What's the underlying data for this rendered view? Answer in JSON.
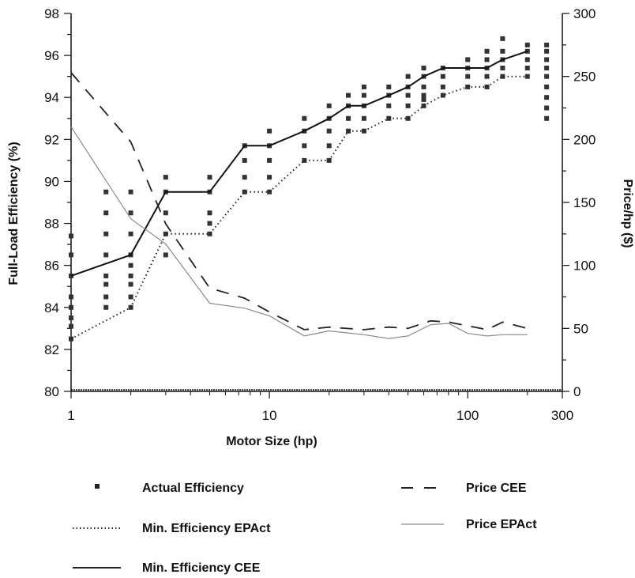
{
  "chart_data": {
    "type": "line",
    "xlabel": "Motor Size (hp)",
    "ylabel": "Full-Load Efficiency (%)",
    "y2label": "Price/hp ($)",
    "x_scale": "log",
    "xlim": [
      1,
      300
    ],
    "ylim": [
      80,
      98
    ],
    "y2lim": [
      0,
      300
    ],
    "x_ticks": [
      1,
      10,
      100,
      300
    ],
    "x_tick_labels": [
      "1",
      "10",
      "100",
      "300"
    ],
    "y_ticks": [
      80,
      82,
      84,
      86,
      88,
      90,
      92,
      94,
      96,
      98
    ],
    "y_tick_labels": [
      "80",
      "82",
      "84",
      "86",
      "88",
      "90",
      "92",
      "94",
      "96",
      "98"
    ],
    "y2_ticks": [
      0,
      50,
      100,
      150,
      200,
      250,
      300
    ],
    "y2_tick_labels": [
      "0",
      "50",
      "100",
      "150",
      "200",
      "250",
      "300"
    ],
    "grid": false,
    "legend_position": "bottom",
    "series": [
      {
        "name": "Actual Efficiency",
        "type": "scatter",
        "axis": "left",
        "points": [
          [
            1,
            82.5
          ],
          [
            1,
            83.1
          ],
          [
            1,
            83.5
          ],
          [
            1,
            84.0
          ],
          [
            1,
            84.5
          ],
          [
            1,
            85.5
          ],
          [
            1,
            86.5
          ],
          [
            1,
            87.4
          ],
          [
            1.5,
            84.0
          ],
          [
            1.5,
            84.5
          ],
          [
            1.5,
            85.1
          ],
          [
            1.5,
            85.5
          ],
          [
            1.5,
            86.5
          ],
          [
            1.5,
            87.5
          ],
          [
            1.5,
            88.5
          ],
          [
            1.5,
            89.5
          ],
          [
            2,
            84.0
          ],
          [
            2,
            84.5
          ],
          [
            2,
            85.1
          ],
          [
            2,
            85.5
          ],
          [
            2,
            86.0
          ],
          [
            2,
            86.5
          ],
          [
            2,
            87.5
          ],
          [
            2,
            88.5
          ],
          [
            2,
            89.5
          ],
          [
            3,
            86.5
          ],
          [
            3,
            87.5
          ],
          [
            3,
            88.5
          ],
          [
            3,
            89.5
          ],
          [
            3,
            90.2
          ],
          [
            5,
            87.5
          ],
          [
            5,
            88.0
          ],
          [
            5,
            88.5
          ],
          [
            5,
            89.5
          ],
          [
            5,
            90.2
          ],
          [
            7.5,
            89.5
          ],
          [
            7.5,
            90.2
          ],
          [
            7.5,
            91.0
          ],
          [
            7.5,
            91.7
          ],
          [
            10,
            89.5
          ],
          [
            10,
            90.2
          ],
          [
            10,
            91.0
          ],
          [
            10,
            91.7
          ],
          [
            10,
            92.4
          ],
          [
            15,
            91.0
          ],
          [
            15,
            91.7
          ],
          [
            15,
            92.4
          ],
          [
            15,
            93.0
          ],
          [
            20,
            91.0
          ],
          [
            20,
            91.7
          ],
          [
            20,
            92.4
          ],
          [
            20,
            93.0
          ],
          [
            20,
            93.6
          ],
          [
            25,
            92.4
          ],
          [
            25,
            93.0
          ],
          [
            25,
            93.6
          ],
          [
            25,
            94.1
          ],
          [
            30,
            92.4
          ],
          [
            30,
            93.0
          ],
          [
            30,
            93.6
          ],
          [
            30,
            94.1
          ],
          [
            30,
            94.5
          ],
          [
            40,
            93.0
          ],
          [
            40,
            93.6
          ],
          [
            40,
            94.1
          ],
          [
            40,
            94.5
          ],
          [
            50,
            93.0
          ],
          [
            50,
            93.6
          ],
          [
            50,
            94.1
          ],
          [
            50,
            94.5
          ],
          [
            50,
            95.0
          ],
          [
            60,
            93.6
          ],
          [
            60,
            93.9
          ],
          [
            60,
            94.1
          ],
          [
            60,
            94.5
          ],
          [
            60,
            95.0
          ],
          [
            60,
            95.4
          ],
          [
            75,
            94.1
          ],
          [
            75,
            94.5
          ],
          [
            75,
            95.0
          ],
          [
            75,
            95.4
          ],
          [
            100,
            94.5
          ],
          [
            100,
            95.0
          ],
          [
            100,
            95.4
          ],
          [
            100,
            95.8
          ],
          [
            125,
            94.5
          ],
          [
            125,
            95.0
          ],
          [
            125,
            95.4
          ],
          [
            125,
            95.8
          ],
          [
            125,
            96.2
          ],
          [
            150,
            95.0
          ],
          [
            150,
            95.4
          ],
          [
            150,
            95.8
          ],
          [
            150,
            96.2
          ],
          [
            150,
            96.8
          ],
          [
            200,
            95.0
          ],
          [
            200,
            95.4
          ],
          [
            200,
            95.8
          ],
          [
            200,
            96.2
          ],
          [
            200,
            96.5
          ],
          [
            250,
            93.0
          ],
          [
            250,
            93.5
          ],
          [
            250,
            94.0
          ],
          [
            250,
            94.5
          ],
          [
            250,
            95.0
          ],
          [
            250,
            95.4
          ],
          [
            250,
            95.8
          ],
          [
            250,
            96.2
          ],
          [
            250,
            96.5
          ]
        ]
      },
      {
        "name": "Min. Efficiency EPAct",
        "type": "line",
        "axis": "left",
        "style": "dotted",
        "points": [
          [
            1,
            82.5
          ],
          [
            2,
            84.0
          ],
          [
            3,
            87.5
          ],
          [
            5,
            87.5
          ],
          [
            7.5,
            89.5
          ],
          [
            10,
            89.5
          ],
          [
            15,
            91.0
          ],
          [
            20,
            91.0
          ],
          [
            25,
            92.4
          ],
          [
            30,
            92.4
          ],
          [
            40,
            93.0
          ],
          [
            50,
            93.0
          ],
          [
            60,
            93.6
          ],
          [
            75,
            94.1
          ],
          [
            100,
            94.5
          ],
          [
            125,
            94.5
          ],
          [
            150,
            95.0
          ],
          [
            200,
            95.0
          ]
        ]
      },
      {
        "name": "Min. Efficiency CEE",
        "type": "line",
        "axis": "left",
        "style": "solid",
        "points": [
          [
            1,
            85.5
          ],
          [
            2,
            86.5
          ],
          [
            3,
            89.5
          ],
          [
            5,
            89.5
          ],
          [
            7.5,
            91.7
          ],
          [
            10,
            91.7
          ],
          [
            15,
            92.4
          ],
          [
            20,
            93.0
          ],
          [
            25,
            93.6
          ],
          [
            30,
            93.6
          ],
          [
            40,
            94.1
          ],
          [
            50,
            94.5
          ],
          [
            60,
            95.0
          ],
          [
            75,
            95.4
          ],
          [
            100,
            95.4
          ],
          [
            125,
            95.4
          ],
          [
            150,
            95.8
          ],
          [
            200,
            96.2
          ]
        ]
      },
      {
        "name": "Price CEE",
        "type": "line",
        "axis": "right",
        "style": "dashed",
        "points": [
          [
            1,
            253
          ],
          [
            2,
            198
          ],
          [
            3,
            133
          ],
          [
            5,
            82
          ],
          [
            7.5,
            74
          ],
          [
            10,
            63
          ],
          [
            15,
            49
          ],
          [
            20,
            51
          ],
          [
            30,
            49
          ],
          [
            40,
            51
          ],
          [
            50,
            50
          ],
          [
            65,
            56
          ],
          [
            80,
            55
          ],
          [
            100,
            52
          ],
          [
            125,
            49
          ],
          [
            150,
            55
          ],
          [
            200,
            50
          ]
        ]
      },
      {
        "name": "Price EPAct",
        "type": "line",
        "axis": "right",
        "style": "thin-gray",
        "points": [
          [
            1,
            210
          ],
          [
            2,
            137
          ],
          [
            3,
            117
          ],
          [
            5,
            70
          ],
          [
            7.5,
            66
          ],
          [
            10,
            60
          ],
          [
            15,
            44
          ],
          [
            20,
            48
          ],
          [
            30,
            45
          ],
          [
            40,
            42
          ],
          [
            50,
            44
          ],
          [
            65,
            53
          ],
          [
            80,
            54
          ],
          [
            100,
            46
          ],
          [
            125,
            44
          ],
          [
            150,
            45
          ],
          [
            200,
            45
          ]
        ]
      }
    ]
  }
}
